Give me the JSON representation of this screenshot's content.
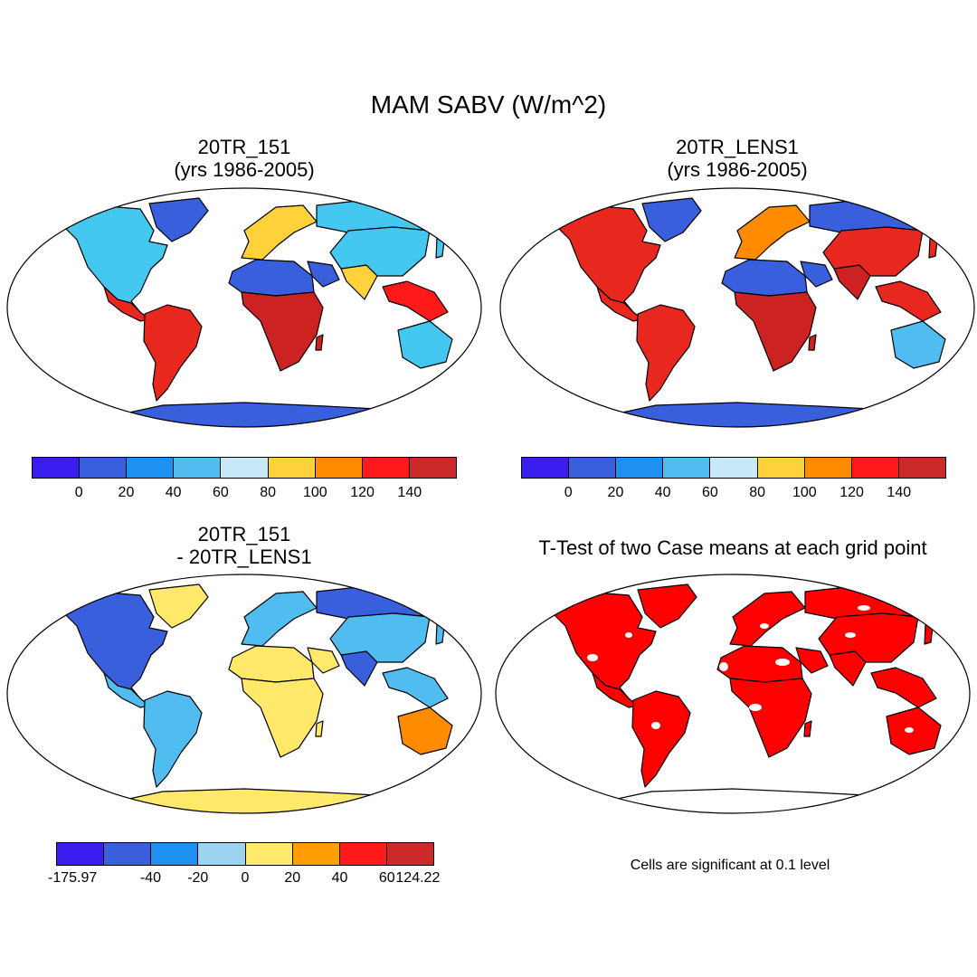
{
  "title": "MAM SABV (W/m^2)",
  "colors": {
    "ocean": "#ffffff",
    "outline": "#000000",
    "signif": "#ff0000",
    "signif_gap": "#ffffff"
  },
  "panels": [
    {
      "id": "p1",
      "title_line1": "20TR_151",
      "title_line2": "(yrs 1986-2005)",
      "fields": {
        "base": "#3a5fdc",
        "na": "#45c8f0",
        "eu": "#ffd23c",
        "sam": "#e8281e",
        "saf": "#cc2222",
        "nafr": "#3a5fdc",
        "india": "#ffd23c",
        "china": "#45c8f0",
        "aus": "#45c8f0",
        "ant": "#3a5fdc",
        "sea": "#ff1a1a",
        "rus": "#45c8f0",
        "greenland": "#3a5fdc",
        "arabia": "#3a5fdc"
      },
      "colorbar": {
        "colors": [
          "#3a1ef0",
          "#3a5fdc",
          "#1e90f0",
          "#50bcf0",
          "#c8e8f8",
          "#ffd23c",
          "#ff8c00",
          "#ff1a1a",
          "#cc2a2a"
        ],
        "ticks": [
          "0",
          "20",
          "40",
          "60",
          "80",
          "100",
          "120",
          "140"
        ]
      }
    },
    {
      "id": "p2",
      "title_line1": "20TR_LENS1",
      "title_line2": "(yrs 1986-2005)",
      "fields": {
        "base": "#3a5fdc",
        "na": "#e8281e",
        "eu": "#ff8c00",
        "sam": "#e8281e",
        "saf": "#cc2222",
        "nafr": "#3a5fdc",
        "india": "#cc2222",
        "china": "#e8281e",
        "aus": "#50bcf0",
        "ant": "#3a5fdc",
        "sea": "#e8281e",
        "rus": "#3a5fdc",
        "greenland": "#3a5fdc",
        "arabia": "#3a5fdc"
      },
      "colorbar": {
        "colors": [
          "#3a1ef0",
          "#3a5fdc",
          "#1e90f0",
          "#50bcf0",
          "#c8e8f8",
          "#ffd23c",
          "#ff8c00",
          "#ff1a1a",
          "#cc2a2a"
        ],
        "ticks": [
          "0",
          "20",
          "40",
          "60",
          "80",
          "100",
          "120",
          "140"
        ]
      }
    },
    {
      "id": "p3",
      "title_line1": "20TR_151",
      "title_line2": "- 20TR_LENS1",
      "fields": {
        "base": "#ffe86a",
        "na": "#3a5fdc",
        "eu": "#50bcf0",
        "sam": "#50bcf0",
        "saf": "#ffe86a",
        "nafr": "#ffe86a",
        "india": "#3a5fdc",
        "china": "#50bcf0",
        "aus": "#ff8c00",
        "ant": "#ffe86a",
        "sea": "#50bcf0",
        "rus": "#3a5fdc",
        "greenland": "#ffe86a",
        "arabia": "#ffe86a"
      },
      "colorbar": {
        "colors": [
          "#3a1ef0",
          "#3a5fdc",
          "#1e90f0",
          "#9ad4f0",
          "#ffe86a",
          "#ff9e00",
          "#ff1a1a",
          "#cc2a2a"
        ],
        "ticks": [
          "-175.97",
          "-40",
          "-20",
          "0",
          "20",
          "40",
          "60",
          "124.22"
        ]
      }
    },
    {
      "id": "p4",
      "title_line1": "T-Test of two Case means at each grid point",
      "note": "Cells are significant at 0.1 level"
    }
  ]
}
